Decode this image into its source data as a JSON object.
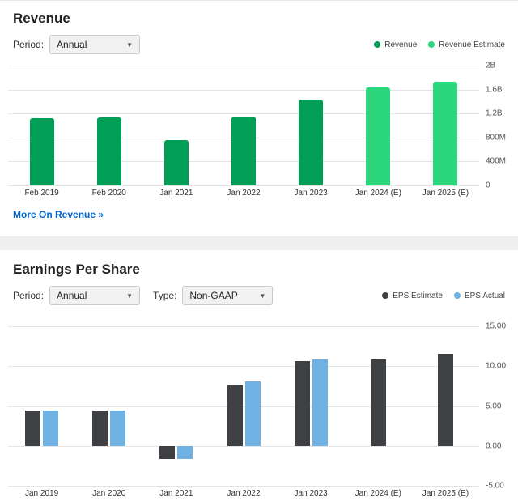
{
  "revenue_section": {
    "title": "Revenue",
    "period_label": "Period:",
    "period_value": "Annual",
    "more_link": "More On Revenue »"
  },
  "eps_section": {
    "title": "Earnings Per Share",
    "period_label": "Period:",
    "period_value": "Annual",
    "type_label": "Type:",
    "type_value": "Non-GAAP"
  },
  "chart_data": [
    {
      "type": "bar",
      "title": "Revenue",
      "units": "millions USD",
      "categories": [
        "Feb 2019",
        "Feb 2020",
        "Jan 2021",
        "Jan 2022",
        "Jan 2023",
        "Jan 2024 (E)",
        "Jan 2025 (E)"
      ],
      "series": [
        {
          "name": "Revenue",
          "color": "#009e56",
          "values": [
            1120,
            1140,
            760,
            1150,
            1430,
            null,
            null
          ]
        },
        {
          "name": "Revenue Estimate",
          "color": "#2bd67d",
          "values": [
            null,
            null,
            null,
            null,
            null,
            1630,
            1730
          ]
        }
      ],
      "ylim": [
        0,
        2000
      ],
      "ytick_labels": [
        "0",
        "400M",
        "800M",
        "1.2B",
        "1.6B",
        "2B"
      ],
      "grid": true,
      "legend_position": "top-right",
      "yaxis_side": "right"
    },
    {
      "type": "bar",
      "title": "Earnings Per Share",
      "units": "USD per share",
      "categories": [
        "Jan 2019",
        "Jan 2020",
        "Jan 2021",
        "Jan 2022",
        "Jan 2023",
        "Jan 2024 (E)",
        "Jan 2025 (E)"
      ],
      "series": [
        {
          "name": "EPS Estimate",
          "color": "#3e4044",
          "values": [
            4.4,
            4.4,
            -1.7,
            7.6,
            10.6,
            10.8,
            11.5
          ]
        },
        {
          "name": "EPS Actual",
          "color": "#6fb1e3",
          "values": [
            4.4,
            4.4,
            -1.7,
            8.1,
            10.8,
            null,
            null
          ]
        }
      ],
      "ylim": [
        -5,
        15
      ],
      "ytick_labels": [
        "-5.00",
        "0.00",
        "5.00",
        "10.00",
        "15.00"
      ],
      "grid": true,
      "legend_position": "top-right",
      "yaxis_side": "right"
    }
  ]
}
